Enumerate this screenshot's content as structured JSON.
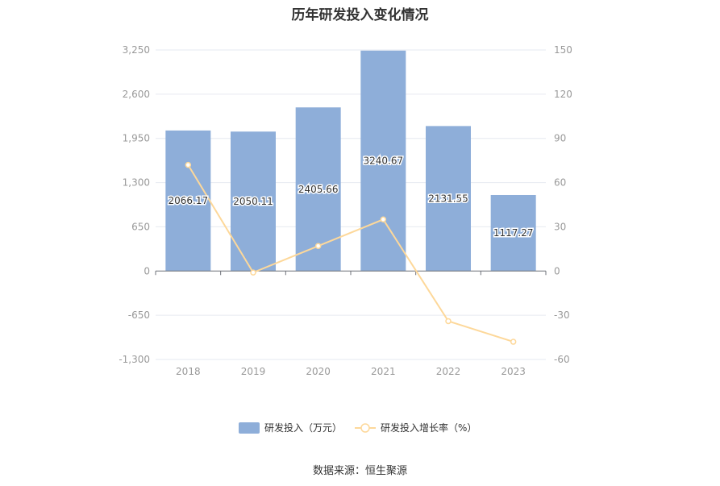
{
  "chart_data": {
    "type": "bar",
    "title": "历年研发投入变化情况",
    "categories": [
      "2018",
      "2019",
      "2020",
      "2021",
      "2022",
      "2023"
    ],
    "series": [
      {
        "name": "研发投入（万元）",
        "type": "bar",
        "axis": "left",
        "values": [
          2066.17,
          2050.11,
          2405.66,
          3240.67,
          2131.55,
          1117.27
        ],
        "labels": [
          "2066.17",
          "2050.11",
          "2405.66",
          "3240.67",
          "2131.55",
          "1117.27"
        ],
        "color": "#8eaed9"
      },
      {
        "name": "研发投入增长率（%）",
        "type": "line",
        "axis": "right",
        "values": [
          72,
          -1,
          17,
          35,
          -34,
          -48
        ],
        "color": "#fdd89a"
      }
    ],
    "left_axis": {
      "ylim": [
        -1300,
        3250
      ],
      "ticks": [
        3250,
        2600,
        1950,
        1300,
        650,
        0,
        -650,
        -1300
      ],
      "tick_labels": [
        "3,250",
        "2,600",
        "1,950",
        "1,300",
        "650",
        "0",
        "-650",
        "-1,300"
      ]
    },
    "right_axis": {
      "ylim": [
        -60,
        150
      ],
      "ticks": [
        150,
        120,
        90,
        60,
        30,
        0,
        -30,
        -60
      ],
      "tick_labels": [
        "150",
        "120",
        "90",
        "60",
        "30",
        "0",
        "-30",
        "-60"
      ]
    },
    "grid": true,
    "legend_position": "bottom",
    "source": "数据来源：恒生聚源"
  }
}
